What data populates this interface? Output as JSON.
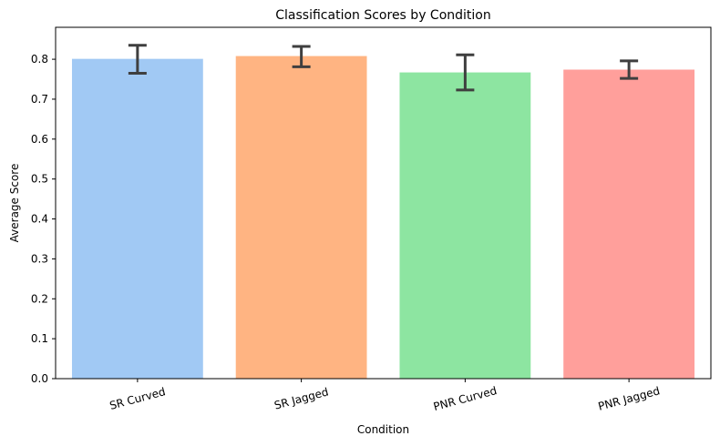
{
  "chart_data": {
    "type": "bar",
    "title": "Classification Scores by Condition",
    "xlabel": "Condition",
    "ylabel": "Average Score",
    "categories": [
      "SR Curved",
      "SR Jagged",
      "PNR Curved",
      "PNR Jagged"
    ],
    "values": [
      0.801,
      0.808,
      0.767,
      0.774
    ],
    "error_low": [
      0.765,
      0.781,
      0.723,
      0.752
    ],
    "error_high": [
      0.835,
      0.832,
      0.811,
      0.796
    ],
    "colors": [
      "#a1c9f4",
      "#ffb482",
      "#8de5a1",
      "#ff9f9b"
    ],
    "ylim": [
      0,
      0.88
    ],
    "yticks": [
      0.0,
      0.1,
      0.2,
      0.3,
      0.4,
      0.5,
      0.6,
      0.7,
      0.8
    ],
    "ytick_labels": [
      "0.0",
      "0.1",
      "0.2",
      "0.3",
      "0.4",
      "0.5",
      "0.6",
      "0.7",
      "0.8"
    ],
    "grid": false,
    "legend": "none"
  }
}
